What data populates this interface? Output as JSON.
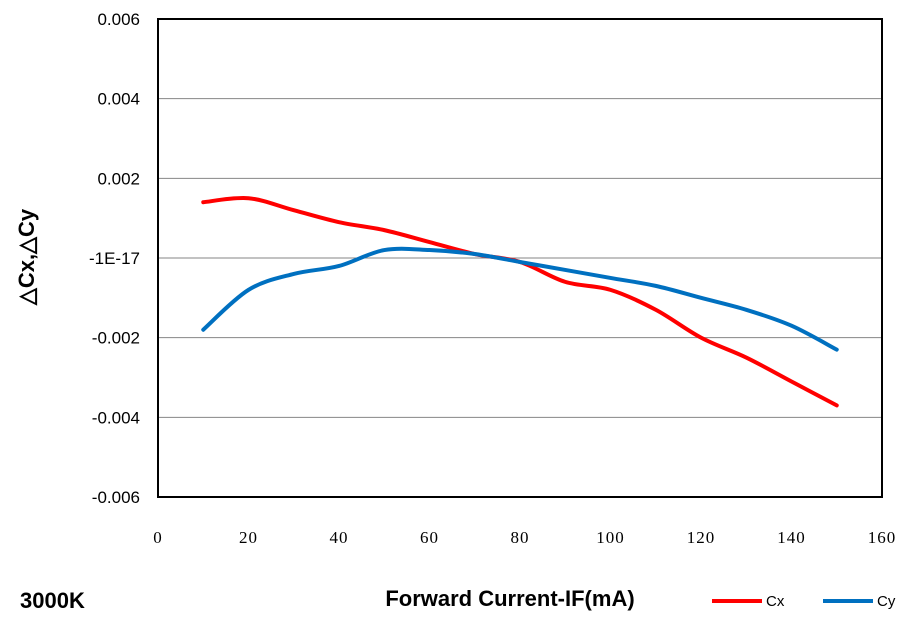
{
  "chart_data": {
    "type": "line",
    "xlabel": "Forward Current-IF(mA)",
    "ylabel": "△Cx,△Cy",
    "annotation": "3000K",
    "xlim": [
      0,
      160
    ],
    "ylim": [
      -0.006,
      0.006
    ],
    "x_ticks": [
      "0",
      "20",
      "40",
      "60",
      "80",
      "100",
      "120",
      "140",
      "160"
    ],
    "y_ticks": [
      "0.006",
      "0.004",
      "0.002",
      "-1E-17",
      "-0.002",
      "-0.004",
      "-0.006"
    ],
    "y_tick_values": [
      0.006,
      0.004,
      0.002,
      0,
      -0.002,
      -0.004,
      -0.006
    ],
    "x_tick_values": [
      0,
      20,
      40,
      60,
      80,
      100,
      120,
      140,
      160
    ],
    "grid": "horizontal",
    "legend_position": "bottom-right",
    "x": [
      10,
      20,
      30,
      40,
      50,
      60,
      70,
      80,
      90,
      100,
      110,
      120,
      130,
      140,
      150
    ],
    "series": [
      {
        "name": "Cx",
        "color": "#ff0000",
        "values": [
          0.0014,
          0.0015,
          0.0012,
          0.0009,
          0.0007,
          0.0004,
          0.0001,
          -0.0001,
          -0.0006,
          -0.0008,
          -0.0013,
          -0.002,
          -0.0025,
          -0.0031,
          -0.0037
        ]
      },
      {
        "name": "Cy",
        "color": "#0070c0",
        "values": [
          -0.0018,
          -0.0008,
          -0.0004,
          -0.0002,
          0.0002,
          0.0002,
          0.0001,
          -0.0001,
          -0.0003,
          -0.0005,
          -0.0007,
          -0.001,
          -0.0013,
          -0.0017,
          -0.0023
        ]
      }
    ]
  }
}
